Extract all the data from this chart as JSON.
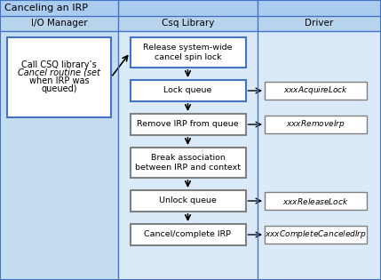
{
  "title": "Canceling an IRP",
  "columns": [
    "I/O Manager",
    "Csq Library",
    "Driver"
  ],
  "bg_outer": "#aeccee",
  "col1_bg": "#c5ddf0",
  "col23_bg": "#daeaf8",
  "title_bg": "#aaccee",
  "header_bg": "#b8d4ec",
  "box_blue_edge": "#4472c4",
  "box_gray_edge": "#808080",
  "io_box": {
    "line1": "Call CSQ library’s",
    "line2": "Cancel routine (set",
    "line3": "when IRP was",
    "line4": "queued)"
  },
  "csq_boxes": [
    {
      "text": "Release system-wide\ncancel spin lock",
      "color": "#4472c4"
    },
    {
      "text": "Lock queue",
      "color": "#4472c4"
    },
    {
      "text": "Remove IRP from queue",
      "color": "#808080"
    },
    {
      "text": "Break association\nbetween IRP and context",
      "color": "#808080"
    },
    {
      "text": "Unlock queue",
      "color": "#808080"
    },
    {
      "text": "Cancel/complete IRP",
      "color": "#808080"
    }
  ],
  "driver_boxes": [
    {
      "text": "xxxAcquireLock",
      "csq_idx": 1
    },
    {
      "text": "xxxRemoveIrp",
      "csq_idx": 2
    },
    {
      "text": "xxxReleaseLock",
      "csq_idx": 4
    },
    {
      "text": "xxxCompleteCanceledIrp",
      "csq_idx": 5
    }
  ]
}
